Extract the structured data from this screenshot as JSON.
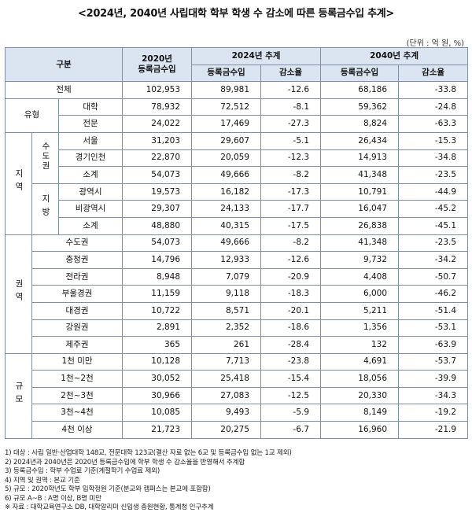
{
  "title": "<2024년, 2040년 사립대학 학부 학생 수 감소에 따른 등록금수입 추계>",
  "unit": "(단위 : 억 원, %)",
  "header": {
    "category": "구분",
    "col2020": "2020년",
    "col2020_sub": "등록금수입",
    "est2024": "2024년 추계",
    "est2040": "2040년 추계",
    "revenue": "등록금수입",
    "decline": "감소율"
  },
  "labels": {
    "total": "전체",
    "type": "유형",
    "region": "지역",
    "capital_area": "수도권",
    "provincial": "지방",
    "zone": "권역",
    "scale": "규모"
  },
  "rows": {
    "total": {
      "a": "102,953",
      "b": "89,981",
      "c": "-12.6",
      "d": "68,186",
      "e": "-33.8"
    },
    "univ": {
      "label": "대학",
      "a": "78,932",
      "b": "72,512",
      "c": "-8.1",
      "d": "59,362",
      "e": "-24.8"
    },
    "college": {
      "label": "전문",
      "a": "24,022",
      "b": "17,469",
      "c": "-27.3",
      "d": "8,824",
      "e": "-63.3"
    },
    "seoul": {
      "label": "서울",
      "a": "31,203",
      "b": "29,607",
      "c": "-5.1",
      "d": "26,434",
      "e": "-15.3"
    },
    "gyeonggi": {
      "label": "경기인천",
      "a": "22,870",
      "b": "20,059",
      "c": "-12.3",
      "d": "14,913",
      "e": "-34.8"
    },
    "cap_sub": {
      "label": "소계",
      "a": "54,073",
      "b": "49,666",
      "c": "-8.2",
      "d": "41,348",
      "e": "-23.5"
    },
    "metro": {
      "label": "광역시",
      "a": "19,573",
      "b": "16,182",
      "c": "-17.3",
      "d": "10,791",
      "e": "-44.9"
    },
    "nonmetro": {
      "label": "비광역시",
      "a": "29,307",
      "b": "24,133",
      "c": "-17.7",
      "d": "16,047",
      "e": "-45.2"
    },
    "prov_sub": {
      "label": "소계",
      "a": "48,880",
      "b": "40,315",
      "c": "-17.5",
      "d": "26,838",
      "e": "-45.1"
    },
    "z_capital": {
      "label": "수도권",
      "a": "54,073",
      "b": "49,666",
      "c": "-8.2",
      "d": "41,348",
      "e": "-23.5"
    },
    "z_chungcheong": {
      "label": "충청권",
      "a": "14,796",
      "b": "12,933",
      "c": "-12.6",
      "d": "9,732",
      "e": "-34.2"
    },
    "z_jeolla": {
      "label": "전라권",
      "a": "8,948",
      "b": "7,079",
      "c": "-20.9",
      "d": "4,408",
      "e": "-50.7"
    },
    "z_bugyeong": {
      "label": "부울경권",
      "a": "11,159",
      "b": "9,118",
      "c": "-18.3",
      "d": "6,000",
      "e": "-46.2"
    },
    "z_daegyeong": {
      "label": "대경권",
      "a": "10,722",
      "b": "8,571",
      "c": "-20.1",
      "d": "5,211",
      "e": "-51.4"
    },
    "z_gangwon": {
      "label": "강원권",
      "a": "2,891",
      "b": "2,352",
      "c": "-18.6",
      "d": "1,356",
      "e": "-53.1"
    },
    "z_jeju": {
      "label": "제주권",
      "a": "365",
      "b": "261",
      "c": "-28.4",
      "d": "132",
      "e": "-63.9"
    },
    "s1": {
      "label": "1천 미만",
      "a": "10,128",
      "b": "7,713",
      "c": "-23.8",
      "d": "4,691",
      "e": "-53.7"
    },
    "s2": {
      "label": "1천~2천",
      "a": "30,052",
      "b": "25,418",
      "c": "-15.4",
      "d": "18,056",
      "e": "-39.9"
    },
    "s3": {
      "label": "2천~3천",
      "a": "30,966",
      "b": "27,083",
      "c": "-12.5",
      "d": "20,330",
      "e": "-34.3"
    },
    "s4": {
      "label": "3천~4천",
      "a": "10,085",
      "b": "9,493",
      "c": "-5.9",
      "d": "8,149",
      "e": "-19.2"
    },
    "s5": {
      "label": "4천 이상",
      "a": "21,723",
      "b": "20,275",
      "c": "-6.7",
      "d": "16,960",
      "e": "-21.9"
    }
  },
  "notes": [
    "1) 대상 : 사립 일반·산업대학 148교, 전문대학 123교(결산 자료 없는 6교 및 등록금수입 없는 1교 제외)",
    "2) 2024년과 2040년은 2020년 등록금수입에 학부 학생 수 감소율을 반영해서 추계함",
    "3) 등록금수입 : 학부 수업료 기준(계절학기 수업료 제외)",
    "4) 지역 및 권역 : 본교 기준",
    "5) 규모 : 2020학년도 학부 입학정원 기준(분교와 캠퍼스는 본교에 포함함)",
    "6) 규모 A~B : A명 이상, B명 미만",
    "※ 자료 : 대학교육연구소 DB, 대학알리미 신입생 충원현황, 통계청 인구추계"
  ]
}
